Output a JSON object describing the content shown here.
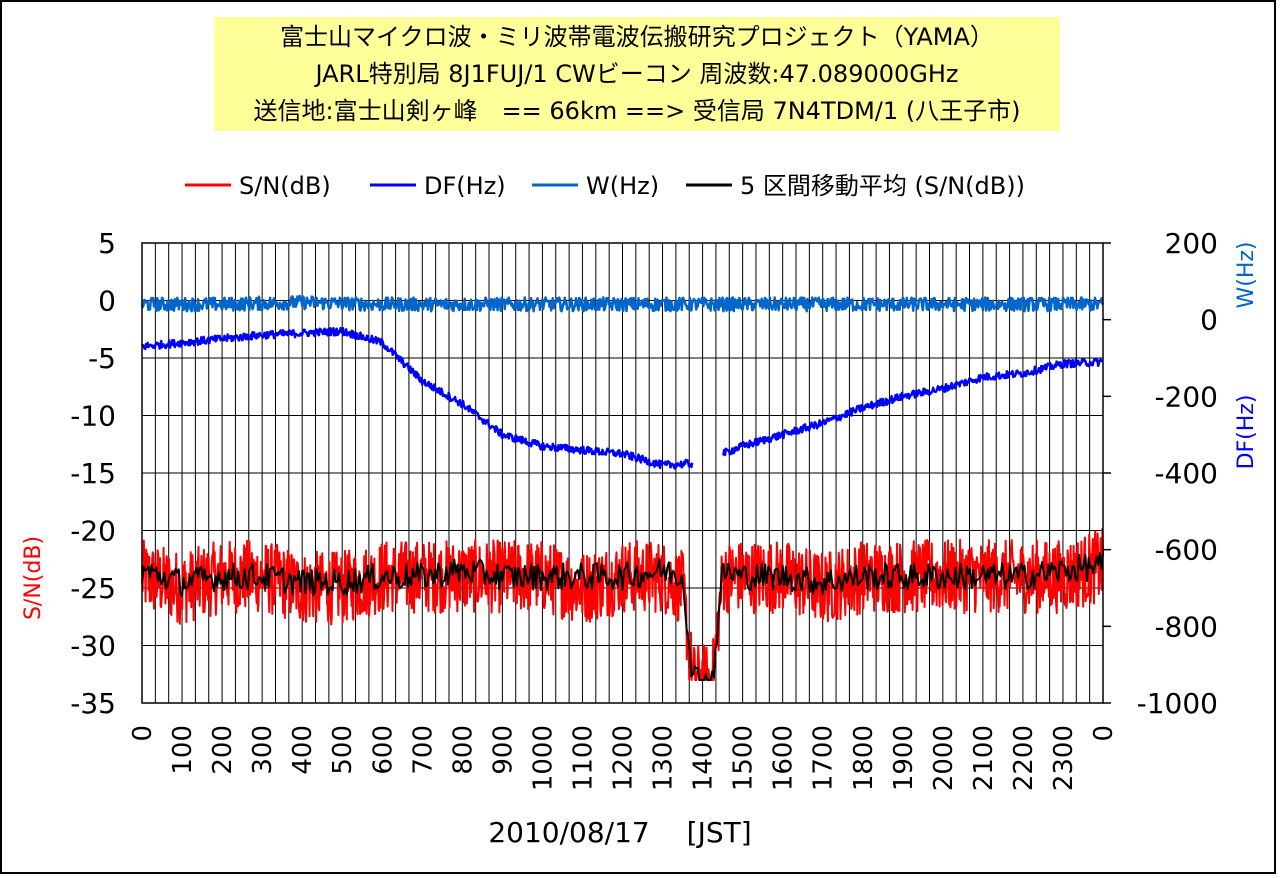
{
  "title_lines": [
    "富士山マイクロ波・ミリ波帯電波伝搬研究プロジェクト（YAMA）",
    "JARL特別局 8J1FUJ/1 CWビーコン 周波数:47.089000GHz",
    "送信地:富士山剣ヶ峰　== 66km ==> 受信局 7N4TDM/1 (八王子市)"
  ],
  "colors": {
    "sn": "#ff0000",
    "df": "#0000ff",
    "w": "#0066cc",
    "avg": "#000000",
    "title_bg": "#ffff99"
  },
  "chart_data": {
    "type": "line",
    "xlabel": "2010/08/17　 [JST]",
    "x_ticks": [
      "0",
      "100",
      "200",
      "300",
      "400",
      "500",
      "600",
      "700",
      "800",
      "900",
      "1000",
      "1100",
      "1200",
      "1300",
      "1400",
      "1500",
      "1600",
      "1700",
      "1800",
      "1900",
      "2000",
      "2100",
      "2200",
      "2300",
      "0"
    ],
    "left_axis": {
      "label": "S/N(dB)",
      "range": [
        -35,
        5
      ],
      "ticks": [
        "5",
        "0",
        "-5",
        "-10",
        "-15",
        "-20",
        "-25",
        "-30",
        "-35"
      ]
    },
    "right_axis_w": {
      "label": "W(Hz)",
      "ticks": [
        "200",
        "0"
      ]
    },
    "right_axis_df": {
      "label": "DF(Hz)",
      "range": [
        -1000,
        200
      ],
      "ticks": [
        "-200",
        "-400",
        "-600",
        "-800",
        "-1000"
      ]
    },
    "legend": [
      "S/N(dB)",
      "DF(Hz)",
      "W(Hz)",
      "5 区間移動平均 (S/N(dB))"
    ],
    "grid": true,
    "series": [
      {
        "name": "S/N(dB)",
        "axis": "left",
        "x": [
          "00:00",
          "01:00",
          "02:00",
          "03:00",
          "04:00",
          "05:00",
          "06:00",
          "07:00",
          "08:00",
          "09:00",
          "10:00",
          "11:00",
          "12:00",
          "13:00",
          "13:30",
          "13:45",
          "14:00",
          "14:15",
          "14:30",
          "15:00",
          "16:00",
          "17:00",
          "18:00",
          "19:00",
          "20:00",
          "21:00",
          "22:00",
          "23:00",
          "24:00"
        ],
        "values": [
          -24,
          -25,
          -24,
          -24,
          -25,
          -25,
          -24,
          -24,
          -24,
          -24,
          -24,
          -25,
          -24,
          -24,
          -25,
          -33,
          -33,
          -33,
          -24,
          -24,
          -24,
          -25,
          -24,
          -24,
          -24,
          -24,
          -24,
          -24,
          -23
        ]
      },
      {
        "name": "5 区間移動平均 (S/N(dB))",
        "axis": "left",
        "x": [
          "00:00",
          "01:00",
          "02:00",
          "03:00",
          "04:00",
          "05:00",
          "06:00",
          "07:00",
          "08:00",
          "09:00",
          "10:00",
          "11:00",
          "12:00",
          "13:00",
          "13:30",
          "13:45",
          "14:00",
          "14:15",
          "14:30",
          "15:00",
          "16:00",
          "17:00",
          "18:00",
          "19:00",
          "20:00",
          "21:00",
          "22:00",
          "23:00",
          "24:00"
        ],
        "values": [
          -23.5,
          -24.5,
          -24,
          -24,
          -24.5,
          -24.5,
          -24,
          -24,
          -23.5,
          -24,
          -24,
          -24,
          -24,
          -23.5,
          -24,
          -32.5,
          -33,
          -33,
          -23.5,
          -24,
          -24,
          -24.5,
          -24,
          -24,
          -24,
          -24,
          -24,
          -23.5,
          -23
        ]
      },
      {
        "name": "DF(Hz)",
        "axis": "right",
        "x": [
          "00:00",
          "01:00",
          "02:00",
          "03:00",
          "04:00",
          "05:00",
          "06:00",
          "07:00",
          "08:00",
          "09:00",
          "10:00",
          "11:00",
          "12:00",
          "13:00",
          "13:45",
          "14:30",
          "15:00",
          "16:00",
          "17:00",
          "18:00",
          "19:00",
          "20:00",
          "21:00",
          "22:00",
          "23:00",
          "24:00"
        ],
        "values": [
          -70,
          -60,
          -50,
          -40,
          -35,
          -30,
          -60,
          -160,
          -220,
          -300,
          -330,
          -340,
          -350,
          -380,
          -375,
          -350,
          -330,
          -300,
          -270,
          -230,
          -200,
          -180,
          -150,
          -140,
          -115,
          -110
        ]
      },
      {
        "name": "W(Hz)",
        "axis": "right",
        "x": [
          "00:00",
          "02:00",
          "04:00",
          "06:00",
          "08:00",
          "10:00",
          "12:00",
          "14:00",
          "16:00",
          "18:00",
          "20:00",
          "22:00",
          "24:00"
        ],
        "values": [
          40,
          40,
          45,
          40,
          40,
          40,
          40,
          40,
          40,
          40,
          40,
          40,
          40
        ]
      }
    ]
  }
}
